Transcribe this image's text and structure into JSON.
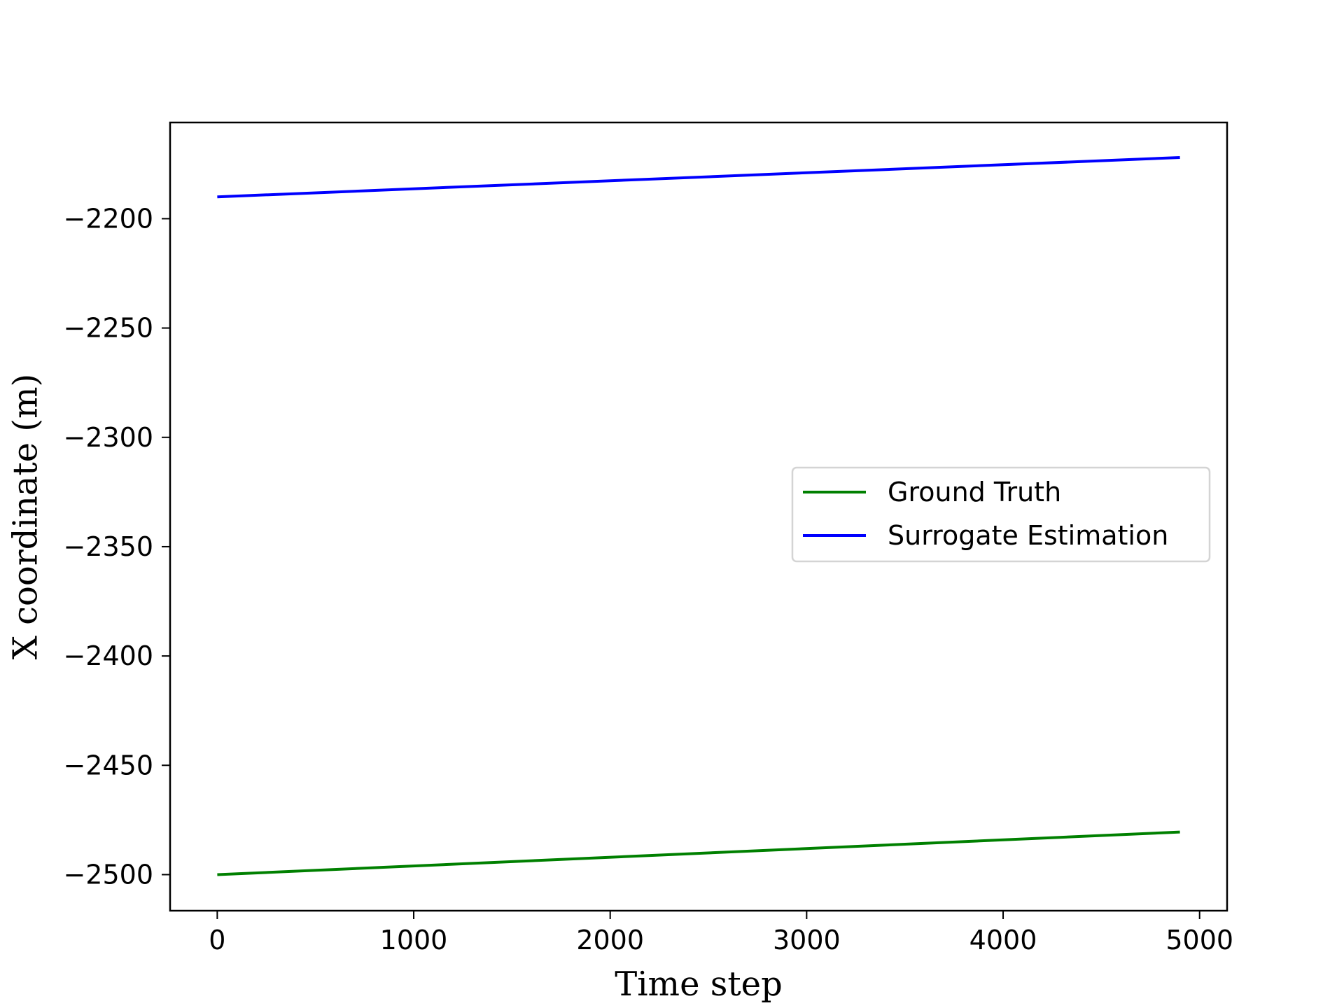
{
  "chart_data": {
    "type": "line",
    "title": "",
    "xlabel": "Time step",
    "ylabel": "X coordinate (m)",
    "xlim": [
      -240,
      5140
    ],
    "ylim": [
      -2516.5,
      -2156
    ],
    "xticks": [
      0,
      1000,
      2000,
      3000,
      4000,
      5000
    ],
    "xtick_labels": [
      "0",
      "1000",
      "2000",
      "3000",
      "4000",
      "5000"
    ],
    "yticks": [
      -2500,
      -2450,
      -2400,
      -2350,
      -2300,
      -2250,
      -2200
    ],
    "ytick_labels": [
      "−2500",
      "−2450",
      "−2400",
      "−2350",
      "−2300",
      "−2250",
      "−2200"
    ],
    "grid": false,
    "legend_position": "center-right",
    "series": [
      {
        "name": "Ground Truth",
        "color": "#008000",
        "x": [
          0,
          4900
        ],
        "y": [
          -2500,
          -2480.5
        ]
      },
      {
        "name": "Surrogate Estimation",
        "color": "#0000ff",
        "x": [
          0,
          4900
        ],
        "y": [
          -2190,
          -2172
        ]
      }
    ]
  }
}
